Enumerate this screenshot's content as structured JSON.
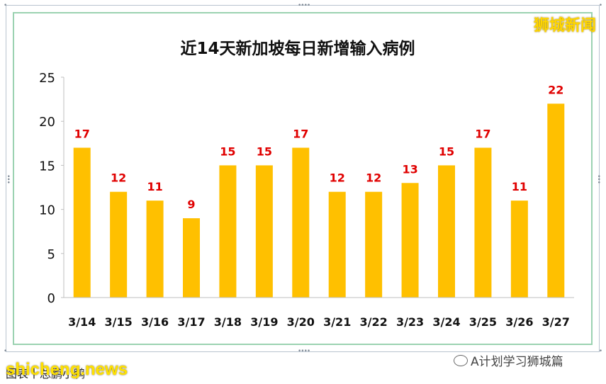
{
  "brand": "狮城新闻",
  "footer": {
    "wechat_label": "A计划学习狮城篇",
    "note": "图表丨总鹏小鸭",
    "watermark": "shicheng.news"
  },
  "chart_data": {
    "type": "bar",
    "title": "近14天新加坡每日新增输入病例",
    "categories": [
      "3/14",
      "3/15",
      "3/16",
      "3/17",
      "3/18",
      "3/19",
      "3/20",
      "3/21",
      "3/22",
      "3/23",
      "3/24",
      "3/25",
      "3/26",
      "3/27"
    ],
    "values": [
      17,
      12,
      11,
      9,
      15,
      15,
      17,
      12,
      12,
      13,
      15,
      17,
      11,
      22
    ],
    "ylim": [
      0,
      25
    ],
    "yticks": [
      0,
      5,
      10,
      15,
      20,
      25
    ],
    "bar_color": "#ffc000",
    "label_color": "#e00000",
    "grid": false,
    "legend": "none"
  }
}
